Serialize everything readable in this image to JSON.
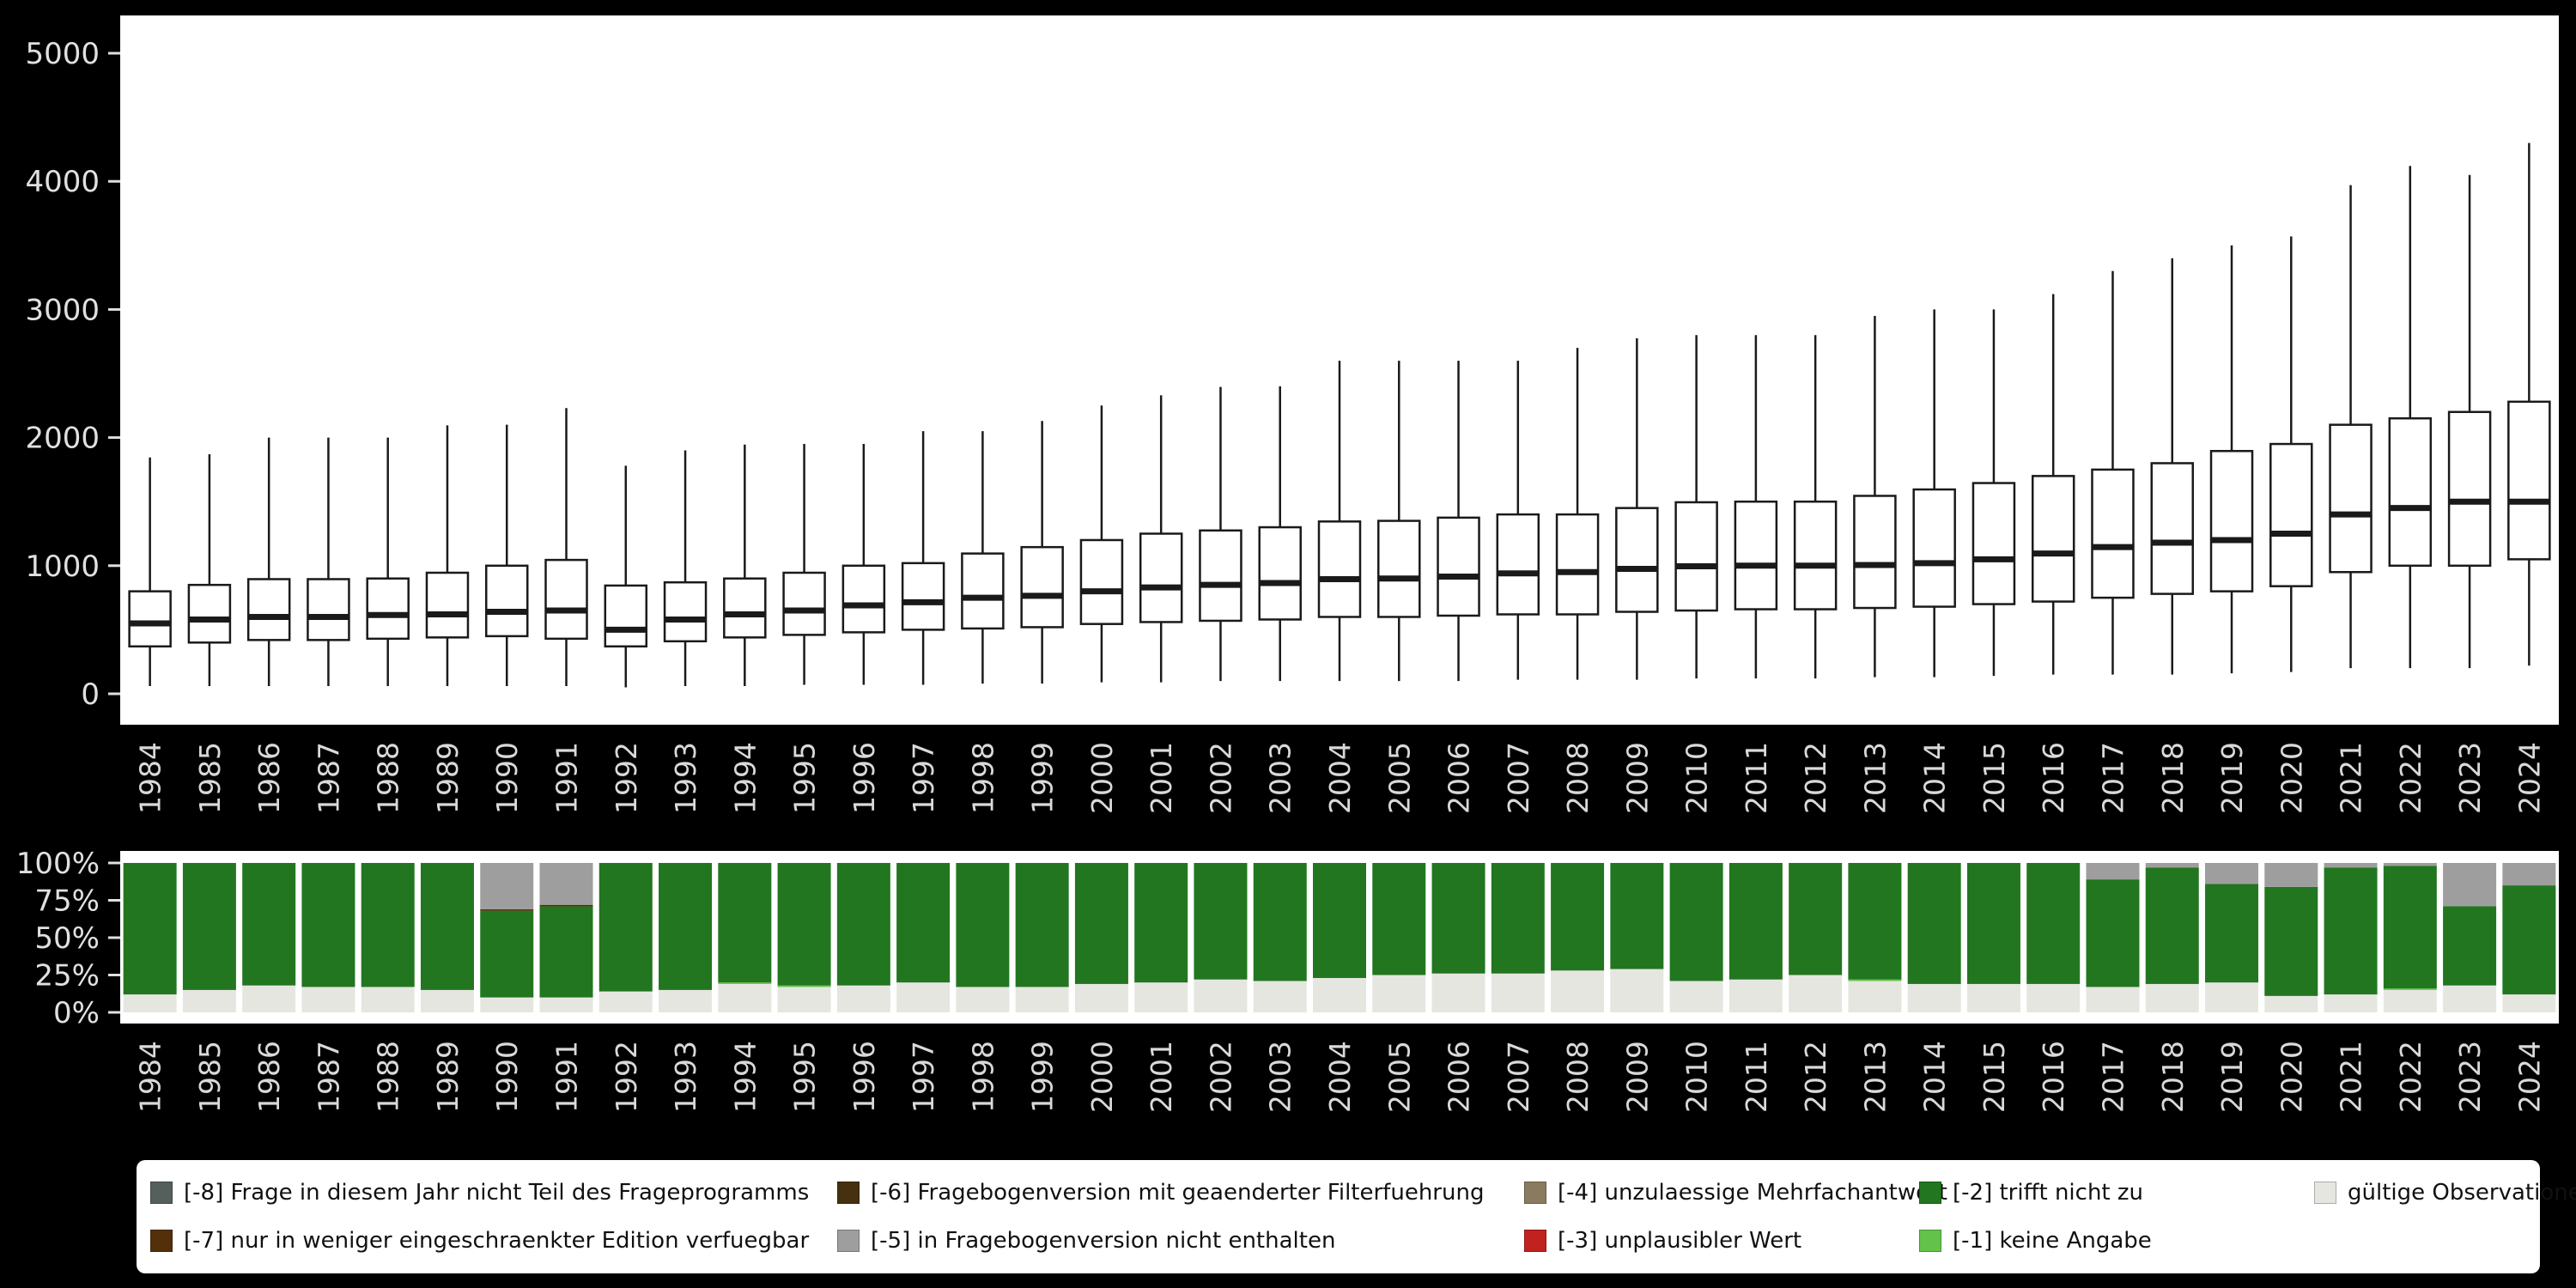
{
  "page": {
    "background": "#000000",
    "panel_background": "#ffffff",
    "axis_text_color": "#e0e0e0"
  },
  "chart_data": [
    {
      "type": "boxplot",
      "title": "",
      "xlabel": "",
      "ylabel": "",
      "ylim": [
        0,
        5000
      ],
      "yticks": [
        {
          "label": "0",
          "value": 0
        },
        {
          "label": "1000",
          "value": 1000
        },
        {
          "label": "2000",
          "value": 2000
        },
        {
          "label": "3000",
          "value": 3000
        },
        {
          "label": "4000",
          "value": 4000
        },
        {
          "label": "5000",
          "value": 5000
        }
      ],
      "box_fill": "#ffffff",
      "box_stroke": "#1a1a1a",
      "x": [
        "1984",
        "1985",
        "1986",
        "1987",
        "1988",
        "1989",
        "1990",
        "1991",
        "1992",
        "1993",
        "1994",
        "1995",
        "1996",
        "1997",
        "1998",
        "1999",
        "2000",
        "2001",
        "2002",
        "2003",
        "2004",
        "2005",
        "2006",
        "2007",
        "2008",
        "2009",
        "2010",
        "2011",
        "2012",
        "2013",
        "2014",
        "2015",
        "2016",
        "2017",
        "2018",
        "2019",
        "2020",
        "2021",
        "2022",
        "2023",
        "2024"
      ],
      "series": {
        "ymin": [
          60,
          60,
          60,
          60,
          60,
          60,
          60,
          60,
          50,
          60,
          60,
          70,
          70,
          70,
          80,
          80,
          90,
          90,
          100,
          100,
          100,
          100,
          100,
          110,
          110,
          110,
          120,
          120,
          120,
          130,
          130,
          140,
          150,
          150,
          150,
          160,
          170,
          200,
          200,
          200,
          220
        ],
        "q1": [
          370,
          400,
          420,
          420,
          430,
          440,
          450,
          430,
          370,
          410,
          440,
          460,
          480,
          500,
          510,
          520,
          545,
          560,
          570,
          580,
          600,
          600,
          610,
          620,
          620,
          640,
          650,
          660,
          660,
          670,
          680,
          700,
          720,
          750,
          780,
          800,
          840,
          950,
          1000,
          1000,
          1050
        ],
        "median": [
          550,
          580,
          600,
          600,
          615,
          620,
          640,
          650,
          500,
          580,
          620,
          650,
          690,
          715,
          750,
          765,
          800,
          830,
          850,
          865,
          895,
          900,
          915,
          940,
          950,
          975,
          995,
          1000,
          1000,
          1005,
          1020,
          1050,
          1095,
          1145,
          1180,
          1200,
          1250,
          1400,
          1450,
          1500,
          1500
        ],
        "q3": [
          800,
          850,
          895,
          895,
          900,
          945,
          1000,
          1045,
          845,
          870,
          900,
          945,
          1000,
          1020,
          1095,
          1145,
          1200,
          1250,
          1275,
          1300,
          1345,
          1350,
          1375,
          1400,
          1400,
          1450,
          1495,
          1500,
          1500,
          1545,
          1595,
          1645,
          1700,
          1750,
          1800,
          1895,
          1950,
          2100,
          2150,
          2200,
          2280
        ],
        "ymax": [
          1845,
          1870,
          2000,
          2000,
          2000,
          2095,
          2100,
          2230,
          1780,
          1900,
          1945,
          1950,
          1950,
          2050,
          2050,
          2130,
          2250,
          2330,
          2395,
          2400,
          2600,
          2600,
          2600,
          2600,
          2700,
          2775,
          2800,
          2800,
          2800,
          2950,
          3000,
          3000,
          3120,
          3300,
          3400,
          3500,
          3570,
          3970,
          4120,
          4050,
          4300
        ]
      }
    },
    {
      "type": "bar",
      "stacked": true,
      "unit": "percent",
      "title": "",
      "categories": [
        "1984",
        "1985",
        "1986",
        "1987",
        "1988",
        "1989",
        "1990",
        "1991",
        "1992",
        "1993",
        "1994",
        "1995",
        "1996",
        "1997",
        "1998",
        "1999",
        "2000",
        "2001",
        "2002",
        "2003",
        "2004",
        "2005",
        "2006",
        "2007",
        "2008",
        "2009",
        "2010",
        "2011",
        "2012",
        "2013",
        "2014",
        "2015",
        "2016",
        "2017",
        "2018",
        "2019",
        "2020",
        "2021",
        "2022",
        "2023",
        "2024"
      ],
      "yticks": [
        {
          "label": "0%",
          "value": 0
        },
        {
          "label": "25%",
          "value": 25
        },
        {
          "label": "50%",
          "value": 50
        },
        {
          "label": "75%",
          "value": 75
        },
        {
          "label": "100%",
          "value": 100
        }
      ],
      "series": [
        {
          "name": "gültige Observationen",
          "color": "#e6e6e1",
          "values": [
            12,
            15,
            18,
            17,
            17,
            15,
            10,
            10,
            14,
            15,
            19,
            17,
            18,
            20,
            17,
            17,
            19,
            20,
            22,
            21,
            23,
            25,
            26,
            26,
            28,
            29,
            21,
            22,
            25,
            21,
            19,
            19,
            19,
            17,
            19,
            20,
            11,
            12,
            15,
            18,
            12
          ]
        },
        {
          "name": "[-1] keine Angabe",
          "color": "#63c24a",
          "values": [
            0,
            0,
            0,
            0,
            0,
            0,
            0,
            0,
            0,
            0,
            1,
            1,
            0,
            0,
            0,
            0,
            0,
            0,
            0,
            0,
            0,
            0,
            0,
            0,
            0,
            0,
            0,
            0,
            0,
            1,
            0,
            0,
            0,
            0,
            0,
            0,
            0,
            0,
            1,
            0,
            0
          ]
        },
        {
          "name": "[-2] trifft nicht zu",
          "color": "#22761f",
          "values": [
            88,
            85,
            82,
            83,
            83,
            85,
            58,
            61,
            86,
            85,
            80,
            82,
            82,
            80,
            83,
            83,
            81,
            80,
            78,
            79,
            77,
            75,
            74,
            74,
            72,
            71,
            79,
            78,
            75,
            78,
            81,
            81,
            81,
            72,
            78,
            66,
            73,
            85,
            82,
            53,
            73
          ]
        },
        {
          "name": "[-7] nur in weniger eingeschraenkter Edition verfuegbar",
          "color": "#53300a",
          "values": [
            0,
            0,
            0,
            0,
            0,
            0,
            1,
            1,
            0,
            0,
            0,
            0,
            0,
            0,
            0,
            0,
            0,
            0,
            0,
            0,
            0,
            0,
            0,
            0,
            0,
            0,
            0,
            0,
            0,
            0,
            0,
            0,
            0,
            0,
            0,
            0,
            0,
            0,
            0,
            0,
            0
          ]
        },
        {
          "name": "[-5] in Fragebogenversion nicht enthalten",
          "color": "#9e9e9e",
          "values": [
            0,
            0,
            0,
            0,
            0,
            0,
            31,
            28,
            0,
            0,
            0,
            0,
            0,
            0,
            0,
            0,
            0,
            0,
            0,
            0,
            0,
            0,
            0,
            0,
            0,
            0,
            0,
            0,
            0,
            0,
            0,
            0,
            0,
            11,
            3,
            14,
            16,
            3,
            2,
            29,
            15
          ]
        }
      ]
    }
  ],
  "legend": {
    "rows": [
      [
        {
          "label": "[-8] Frage in diesem Jahr nicht Teil des Frageprogramms",
          "color": "#555f5c"
        },
        {
          "label": "[-6] Fragebogenversion mit geaenderter Filterfuehrung",
          "color": "#45300f"
        },
        {
          "label": "[-4] unzulaessige Mehrfachantwort",
          "color": "#8a7a5f"
        },
        {
          "label": "[-2] trifft nicht zu",
          "color": "#22761f"
        },
        {
          "label": "gültige Observationen",
          "color": "#e6e6e1"
        }
      ],
      [
        {
          "label": "[-7] nur in weniger eingeschraenkter Edition verfuegbar",
          "color": "#53300a"
        },
        {
          "label": "[-5] in Fragebogenversion nicht enthalten",
          "color": "#9e9e9e"
        },
        {
          "label": "[-3] unplausibler Wert",
          "color": "#c1221f"
        },
        {
          "label": "[-1] keine Angabe",
          "color": "#63c24a"
        }
      ]
    ]
  }
}
